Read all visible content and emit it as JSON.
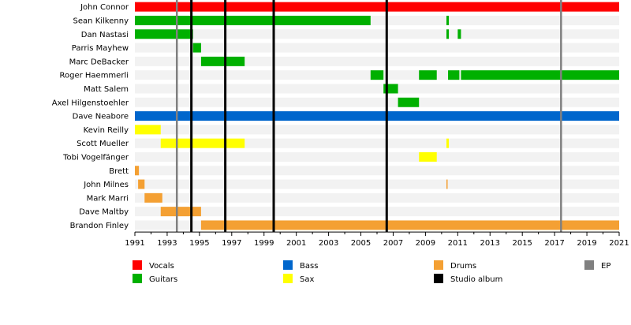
{
  "chart_data": {
    "type": "timeline",
    "title": "",
    "x_range": [
      1991,
      2021
    ],
    "x_ticks": [
      1991,
      1993,
      1995,
      1997,
      1999,
      2001,
      2003,
      2005,
      2007,
      2009,
      2011,
      2013,
      2015,
      2017,
      2019,
      2021
    ],
    "members": [
      {
        "name": "John Connor",
        "bars": [
          {
            "role": "Vocals",
            "start": 1991.0,
            "end": 2021.0
          }
        ]
      },
      {
        "name": "Sean Kilkenny",
        "bars": [
          {
            "role": "Guitars",
            "start": 1991.0,
            "end": 2005.6
          },
          {
            "role": "Guitars",
            "start": 2010.3,
            "end": 2010.45
          }
        ]
      },
      {
        "name": "Dan Nastasi",
        "bars": [
          {
            "role": "Guitars",
            "start": 1991.0,
            "end": 1994.6
          },
          {
            "role": "Guitars",
            "start": 2010.3,
            "end": 2010.45
          },
          {
            "role": "Guitars",
            "start": 2011.0,
            "end": 2011.2
          }
        ]
      },
      {
        "name": "Parris Mayhew",
        "bars": [
          {
            "role": "Guitars",
            "start": 1994.6,
            "end": 1995.1
          }
        ]
      },
      {
        "name": "Marc DeBacker",
        "bars": [
          {
            "role": "Guitars",
            "start": 1995.1,
            "end": 1997.8
          }
        ]
      },
      {
        "name": "Roger Haemmerli",
        "bars": [
          {
            "role": "Guitars",
            "start": 2005.6,
            "end": 2006.4
          },
          {
            "role": "Guitars",
            "start": 2008.6,
            "end": 2009.7
          },
          {
            "role": "Guitars",
            "start": 2010.4,
            "end": 2011.1
          },
          {
            "role": "Guitars",
            "start": 2011.2,
            "end": 2021.0
          }
        ]
      },
      {
        "name": "Matt Salem",
        "bars": [
          {
            "role": "Guitars",
            "start": 2006.4,
            "end": 2007.3
          }
        ]
      },
      {
        "name": "Axel Hilgenstoehler",
        "bars": [
          {
            "role": "Guitars",
            "start": 2007.3,
            "end": 2008.6
          }
        ]
      },
      {
        "name": "Dave Neabore",
        "bars": [
          {
            "role": "Bass",
            "start": 1991.0,
            "end": 2021.0
          }
        ]
      },
      {
        "name": "Kevin Reilly",
        "bars": [
          {
            "role": "Sax",
            "start": 1991.0,
            "end": 1992.6
          }
        ]
      },
      {
        "name": "Scott Mueller",
        "bars": [
          {
            "role": "Sax",
            "start": 1992.6,
            "end": 1997.8
          },
          {
            "role": "Sax",
            "start": 2010.3,
            "end": 2010.45
          }
        ]
      },
      {
        "name": "Tobi Vogelfänger",
        "bars": [
          {
            "role": "Sax",
            "start": 2008.6,
            "end": 2009.7
          }
        ]
      },
      {
        "name": "Brett",
        "bars": [
          {
            "role": "Drums",
            "start": 1991.0,
            "end": 1991.25
          }
        ]
      },
      {
        "name": "John Milnes",
        "bars": [
          {
            "role": "Drums",
            "start": 1991.2,
            "end": 1991.6
          },
          {
            "role": "Drums",
            "start": 2010.3,
            "end": 2010.35
          }
        ]
      },
      {
        "name": "Mark Marri",
        "bars": [
          {
            "role": "Drums",
            "start": 1991.6,
            "end": 1992.7
          }
        ]
      },
      {
        "name": "Dave Maltby",
        "bars": [
          {
            "role": "Drums",
            "start": 1992.6,
            "end": 1995.1
          }
        ]
      },
      {
        "name": "Brandon Finley",
        "bars": [
          {
            "role": "Drums",
            "start": 1995.1,
            "end": 2021.0
          }
        ]
      }
    ],
    "events": [
      {
        "type": "EP",
        "year": 1993.6
      },
      {
        "type": "Studio album",
        "year": 1994.5
      },
      {
        "type": "Studio album",
        "year": 1996.6
      },
      {
        "type": "Studio album",
        "year": 1999.6
      },
      {
        "type": "Studio album",
        "year": 2006.6
      },
      {
        "type": "EP",
        "year": 2017.4
      }
    ],
    "legend": [
      {
        "label": "Vocals",
        "color": "#ff0000"
      },
      {
        "label": "Guitars",
        "color": "#00b000"
      },
      {
        "label": "Bass",
        "color": "#0066cc"
      },
      {
        "label": "Sax",
        "color": "#ffff00"
      },
      {
        "label": "Drums",
        "color": "#f4a033"
      },
      {
        "label": "Studio album",
        "color": "#000000"
      },
      {
        "label": "EP",
        "color": "#808080"
      }
    ],
    "legend_placement": "bottom"
  }
}
